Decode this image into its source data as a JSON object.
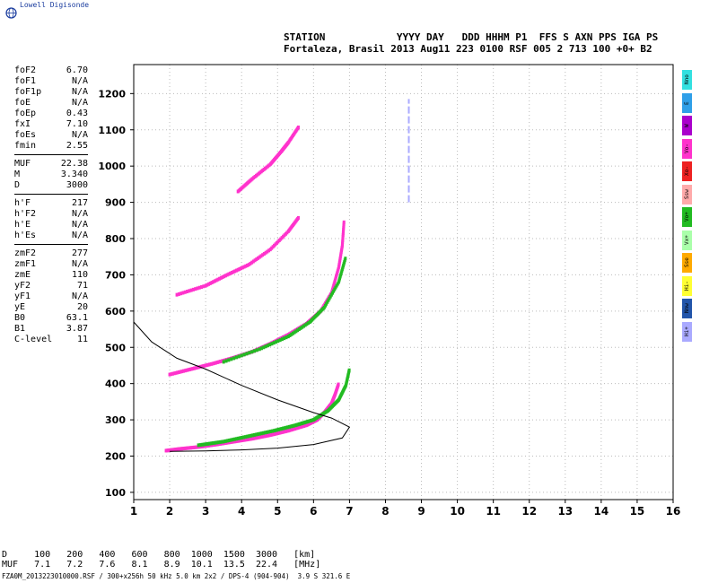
{
  "brand": "Lowell Digisonde",
  "header": {
    "line1": "STATION            YYYY DAY   DDD HHHM P1  FFS S AXN PPS IGA PS",
    "line2": "Fortaleza, Brasil 2013 Aug11 223 0100 RSF 005 2 713 100 +0+ B2"
  },
  "params_group1": [
    {
      "k": "foF2",
      "v": "6.70"
    },
    {
      "k": "foF1",
      "v": "N/A"
    },
    {
      "k": "foF1p",
      "v": "N/A"
    },
    {
      "k": "foE",
      "v": "N/A"
    },
    {
      "k": "foEp",
      "v": "0.43"
    },
    {
      "k": "fxI",
      "v": "7.10"
    },
    {
      "k": "foEs",
      "v": "N/A"
    },
    {
      "k": "fmin",
      "v": "2.55"
    }
  ],
  "params_group2": [
    {
      "k": "MUF",
      "v": "22.38"
    },
    {
      "k": "M",
      "v": "3.340"
    },
    {
      "k": "D",
      "v": "3000"
    }
  ],
  "params_group3": [
    {
      "k": "h'F",
      "v": "217"
    },
    {
      "k": "h'F2",
      "v": "N/A"
    },
    {
      "k": "h'E",
      "v": "N/A"
    },
    {
      "k": "h'Es",
      "v": "N/A"
    }
  ],
  "params_group4": [
    {
      "k": "zmF2",
      "v": "277"
    },
    {
      "k": "zmF1",
      "v": "N/A"
    },
    {
      "k": "zmE",
      "v": "110"
    },
    {
      "k": "yF2",
      "v": "71"
    },
    {
      "k": "yF1",
      "v": "N/A"
    },
    {
      "k": "yE",
      "v": "20"
    },
    {
      "k": "B0",
      "v": "63.1"
    },
    {
      "k": "B1",
      "v": "3.87"
    },
    {
      "k": "C-level",
      "v": "11"
    }
  ],
  "legend": [
    {
      "label": "Nno",
      "color": "#33e0e0"
    },
    {
      "label": "E",
      "color": "#2f9fe8"
    },
    {
      "label": "W",
      "color": "#aa00cc"
    },
    {
      "label": "Vo-",
      "color": "#ff33cc"
    },
    {
      "label": "Xo-",
      "color": "#ee2222"
    },
    {
      "label": "Ssw",
      "color": "#ffaaaa"
    },
    {
      "label": "Vo+",
      "color": "#22bb22"
    },
    {
      "label": "Vx+",
      "color": "#aaffaa"
    },
    {
      "label": "Sse",
      "color": "#ffaa00"
    },
    {
      "label": "Hi-",
      "color": "#ffff33"
    },
    {
      "label": "Nnw",
      "color": "#2255aa"
    },
    {
      "label": "Hi+",
      "color": "#aaaaff"
    }
  ],
  "bottom": {
    "d_line": "D     100   200   400   600   800  1000  1500  3000   [km]",
    "muf_line": "MUF   7.1   7.2   7.6   8.1   8.9  10.1  13.5  22.4   [MHz]",
    "footer": "FZA0M_2013223010000.RSF / 300+x256h 50 kHz 5.0 km 2x2 / DPS-4 (904-904)  3.9 S 321.6 E"
  },
  "chart_data": {
    "type": "scatter",
    "xlim": [
      1,
      16
    ],
    "ylim": [
      80,
      1280
    ],
    "x_ticks": [
      1,
      2,
      3,
      4,
      5,
      6,
      7,
      8,
      9,
      10,
      11,
      12,
      13,
      14,
      15,
      16
    ],
    "y_ticks": [
      100,
      200,
      300,
      400,
      500,
      600,
      700,
      800,
      900,
      1000,
      1100,
      1200
    ],
    "grid": true,
    "traces": [
      {
        "name": "o1",
        "color": "#ff33cc",
        "points": [
          [
            1.9,
            215
          ],
          [
            2.3,
            220
          ],
          [
            2.8,
            225
          ],
          [
            3.3,
            232
          ],
          [
            3.8,
            240
          ],
          [
            4.3,
            248
          ],
          [
            4.8,
            258
          ],
          [
            5.3,
            270
          ],
          [
            5.8,
            285
          ],
          [
            6.1,
            300
          ],
          [
            6.3,
            320
          ],
          [
            6.5,
            345
          ],
          [
            6.6,
            370
          ],
          [
            6.7,
            400
          ]
        ]
      },
      {
        "name": "x1",
        "color": "#22bb22",
        "points": [
          [
            2.8,
            230
          ],
          [
            3.5,
            240
          ],
          [
            4.2,
            255
          ],
          [
            4.9,
            270
          ],
          [
            5.5,
            285
          ],
          [
            6.0,
            300
          ],
          [
            6.4,
            325
          ],
          [
            6.7,
            355
          ],
          [
            6.9,
            395
          ],
          [
            7.0,
            440
          ]
        ]
      },
      {
        "name": "o2",
        "color": "#ff33cc",
        "points": [
          [
            2.0,
            425
          ],
          [
            2.6,
            440
          ],
          [
            3.2,
            455
          ],
          [
            3.8,
            472
          ],
          [
            4.3,
            488
          ],
          [
            4.8,
            510
          ],
          [
            5.3,
            535
          ],
          [
            5.8,
            565
          ],
          [
            6.2,
            600
          ],
          [
            6.5,
            650
          ],
          [
            6.7,
            720
          ],
          [
            6.8,
            780
          ],
          [
            6.85,
            850
          ]
        ]
      },
      {
        "name": "x2",
        "color": "#22bb22",
        "points": [
          [
            3.5,
            460
          ],
          [
            4.5,
            495
          ],
          [
            5.3,
            530
          ],
          [
            5.9,
            570
          ],
          [
            6.3,
            610
          ],
          [
            6.7,
            680
          ],
          [
            6.9,
            750
          ]
        ]
      },
      {
        "name": "o3",
        "color": "#ff33cc",
        "points": [
          [
            2.2,
            645
          ],
          [
            3.0,
            670
          ],
          [
            3.6,
            700
          ],
          [
            4.2,
            728
          ],
          [
            4.8,
            770
          ],
          [
            5.3,
            820
          ],
          [
            5.6,
            860
          ]
        ]
      },
      {
        "name": "o4",
        "color": "#ff33cc",
        "points": [
          [
            3.9,
            930
          ],
          [
            4.3,
            965
          ],
          [
            4.8,
            1005
          ],
          [
            5.1,
            1040
          ],
          [
            5.3,
            1065
          ],
          [
            5.6,
            1110
          ]
        ]
      },
      {
        "name": "profile",
        "color": "#000000",
        "points": [
          [
            1,
            570
          ],
          [
            1.5,
            515
          ],
          [
            2.2,
            470
          ],
          [
            3.0,
            440
          ],
          [
            4.0,
            395
          ],
          [
            5.0,
            355
          ],
          [
            6.0,
            320
          ],
          [
            6.5,
            305
          ],
          [
            7.0,
            280
          ],
          [
            6.8,
            250
          ],
          [
            6.0,
            232
          ],
          [
            5.0,
            222
          ],
          [
            4.0,
            217
          ],
          [
            3.0,
            214
          ],
          [
            2.0,
            213
          ]
        ]
      }
    ],
    "vline": {
      "x": 8.65,
      "y1": 900,
      "y2": 1185,
      "color": "#aaaaff"
    }
  }
}
